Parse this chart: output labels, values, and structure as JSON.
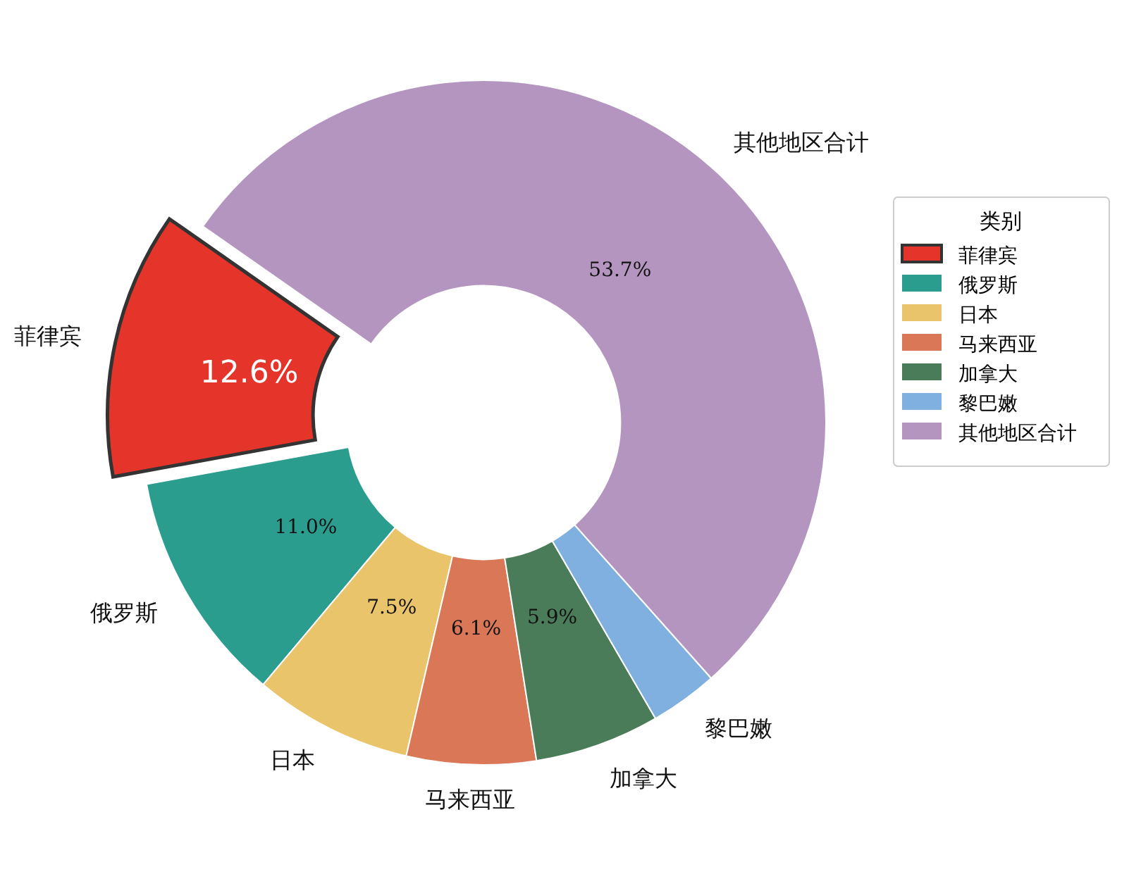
{
  "chart_data": {
    "type": "donut",
    "legend_title": "类别",
    "legend": "right",
    "categories": [
      "菲律宾",
      "俄罗斯",
      "日本",
      "马来西亚",
      "加拿大",
      "黎巴嫩",
      "其他地区合计"
    ],
    "values": [
      12.6,
      11.0,
      7.5,
      6.1,
      5.9,
      3.2,
      53.7
    ],
    "colors": [
      "#e5352b",
      "#2a9d8f",
      "#e9c46a",
      "#d97757",
      "#4a7c59",
      "#7fb0e0",
      "#b495c0"
    ],
    "value_labels": [
      "12.6%",
      "11.0%",
      "7.5%",
      "6.1%",
      "5.9%",
      null,
      "53.7%"
    ]
  }
}
